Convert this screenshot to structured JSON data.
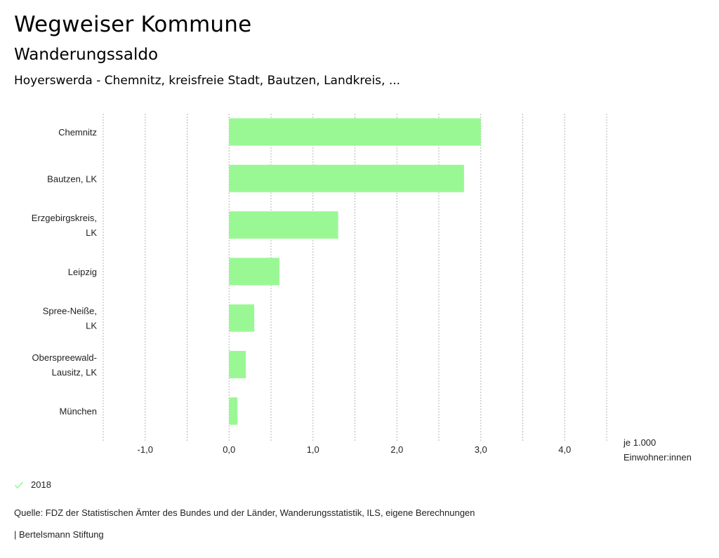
{
  "header": {
    "title": "Wegweiser Kommune",
    "subtitle": "Wanderungssaldo",
    "selection": "Hoyerswerda - Chemnitz, kreisfreie Stadt, Bautzen, Landkreis, ..."
  },
  "chart_data": {
    "type": "bar",
    "orientation": "horizontal",
    "title": "Wanderungssaldo",
    "categories": [
      [
        "Chemnitz"
      ],
      [
        "Bautzen, LK"
      ],
      [
        "Erzgebirgskreis,",
        "LK"
      ],
      [
        "Leipzig"
      ],
      [
        "Spree-Neiße,",
        "LK"
      ],
      [
        "Oberspreewald-",
        "Lausitz, LK"
      ],
      [
        "München"
      ]
    ],
    "series": [
      {
        "name": "2018",
        "color": "#9af894",
        "values": [
          3.0,
          2.8,
          1.3,
          0.6,
          0.3,
          0.2,
          0.1
        ]
      }
    ],
    "xlim": [
      -1.5,
      4.5
    ],
    "xticks": [
      -1.0,
      0.0,
      1.0,
      2.0,
      3.0,
      4.0
    ],
    "xtick_labels": [
      "-1,0",
      "0,0",
      "1,0",
      "2,0",
      "3,0",
      "4,0"
    ],
    "gridlines": [
      -1.5,
      -1.0,
      -0.5,
      0.0,
      0.5,
      1.0,
      1.5,
      2.0,
      2.5,
      3.0,
      3.5,
      4.0,
      4.5
    ],
    "grid": true,
    "xlabel": [
      "je 1.000",
      "Einwohner:innen"
    ],
    "ylabel": "",
    "legend_position": "bottom-left"
  },
  "legend": {
    "items": [
      {
        "label": "2018",
        "color": "#9af894",
        "icon": "check-icon"
      }
    ]
  },
  "footer": {
    "source": "Quelle: FDZ der Statistischen Ämter des Bundes und der Länder, Wanderungsstatistik, ILS, eigene Berechnungen",
    "brand": "| Bertelsmann Stiftung"
  }
}
